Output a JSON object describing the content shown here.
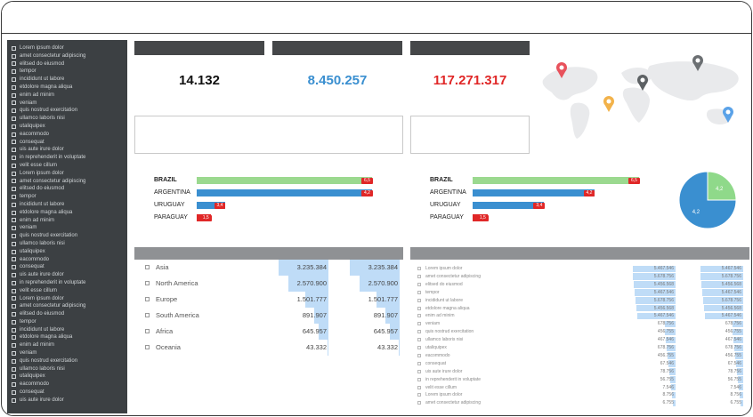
{
  "sidebar": {
    "items": [
      "Lorem ipsum dolor",
      "amet consectetur adipiscing",
      "elitsed do eiusmod",
      "tempor",
      "incididunt ut labore",
      "etdolore magna aliqua",
      "enim ad minim",
      "veniam",
      "quis nostrud exercitation",
      "ullamco laboris nisi",
      "utaliquipex",
      "eacommodo",
      "consequat",
      "uis aute irure dolor",
      "in reprehenderit in voluptate",
      "velit esse cillum",
      "Lorem ipsum dolor",
      "amet consectetur adipiscing",
      "elitsed do eiusmod",
      "tempor",
      "incididunt ut labore",
      "etdolore magna aliqua",
      "enim ad minim",
      "veniam",
      "quis nostrud exercitation",
      "ullamco laboris nisi",
      "utaliquipex",
      "eacommodo",
      "consequat",
      "uis aute irure dolor",
      "in reprehenderit in voluptate",
      "velit esse cillum",
      "Lorem ipsum dolor",
      "amet consectetur adipiscing",
      "elitsed do eiusmod",
      "tempor",
      "incididunt ut labore",
      "etdolore magna aliqua",
      "enim ad minim",
      "veniam",
      "quis nostrud exercitation",
      "ullamco laboris nisi",
      "utaliquipex",
      "eacommodo",
      "consequat",
      "uis aute irure dolor"
    ]
  },
  "kpis": [
    {
      "value": "14.132",
      "color": "#111111"
    },
    {
      "value": "8.450.257",
      "color": "#3a8fd0"
    },
    {
      "value": "117.271.317",
      "color": "#e02727"
    }
  ],
  "country_bars_left": [
    {
      "label": "BRAZIL",
      "bold": true,
      "value": "6,5",
      "color": "#9bd98f",
      "fraction": 1.0
    },
    {
      "label": "ARGENTINA",
      "bold": false,
      "value": "4,2",
      "color": "#3a8fd0",
      "fraction": 1.0
    },
    {
      "label": "URUGUAY",
      "bold": false,
      "value": "3,4",
      "color": "#3a8fd0",
      "fraction": 0.16
    },
    {
      "label": "PARAGUAY",
      "bold": false,
      "value": "1,5",
      "color": "#e02727",
      "fraction": 0.08
    }
  ],
  "country_bars_right": [
    {
      "label": "BRAZIL",
      "bold": true,
      "value": "6,5",
      "color": "#9bd98f",
      "fraction": 1.0
    },
    {
      "label": "ARGENTINA",
      "bold": false,
      "value": "4,2",
      "color": "#3a8fd0",
      "fraction": 0.73
    },
    {
      "label": "URUGUAY",
      "bold": false,
      "value": "3,4",
      "color": "#3a8fd0",
      "fraction": 0.43
    },
    {
      "label": "PARAGUAY",
      "bold": false,
      "value": "1,5",
      "color": "#e02727",
      "fraction": 0.09
    }
  ],
  "pie": {
    "slices": [
      {
        "label": "4,2",
        "value": 0.25,
        "color": "#8fd98a"
      },
      {
        "label": "4,2",
        "value": 0.75,
        "color": "#3a8fd0"
      }
    ]
  },
  "continent_table": {
    "rows": [
      {
        "label": "Asia",
        "v1": "3.235.384",
        "v2": "3.235.384",
        "fraction": 1.0
      },
      {
        "label": "North America",
        "v1": "2.570.900",
        "v2": "2.570.900",
        "fraction": 0.8
      },
      {
        "label": "Europe",
        "v1": "1.501.777",
        "v2": "1.501.777",
        "fraction": 0.47
      },
      {
        "label": "South America",
        "v1": "891.907",
        "v2": "891.907",
        "fraction": 0.28
      },
      {
        "label": "Africa",
        "v1": "645.957",
        "v2": "645.957",
        "fraction": 0.2
      },
      {
        "label": "Oceania",
        "v1": "43.332",
        "v2": "43.332",
        "fraction": 0.02
      }
    ]
  },
  "detail_table": {
    "rows": [
      {
        "label": "Lorem ipsum dolor",
        "v1": "5.467.546",
        "v2": "5.467.546",
        "fraction": 1.0
      },
      {
        "label": "amet consectetur adipiscing",
        "v1": "5.678.756",
        "v2": "5.678.756",
        "fraction": 1.0
      },
      {
        "label": "elitsed do eiusmod",
        "v1": "5.456.568",
        "v2": "5.456.568",
        "fraction": 0.98
      },
      {
        "label": "tempor",
        "v1": "5.467.546",
        "v2": "5.467.546",
        "fraction": 0.96
      },
      {
        "label": "incididunt ut labore",
        "v1": "5.678.756",
        "v2": "5.678.756",
        "fraction": 0.94
      },
      {
        "label": "etdolore magna aliqua",
        "v1": "5.456.568",
        "v2": "5.456.568",
        "fraction": 0.92
      },
      {
        "label": "enim ad minim",
        "v1": "5.467.546",
        "v2": "5.467.546",
        "fraction": 0.9
      },
      {
        "label": "veniam",
        "v1": "678.756",
        "v2": "678.756",
        "fraction": 0.26
      },
      {
        "label": "quis nostrud exercitation",
        "v1": "456.755",
        "v2": "456.755",
        "fraction": 0.24
      },
      {
        "label": "ullamco laboris nisi",
        "v1": "467.546",
        "v2": "467.546",
        "fraction": 0.22
      },
      {
        "label": "utaliquipex",
        "v1": "678.756",
        "v2": "678.756",
        "fraction": 0.2
      },
      {
        "label": "eacommodo",
        "v1": "456.755",
        "v2": "456.755",
        "fraction": 0.18
      },
      {
        "label": "consequat",
        "v1": "67.546",
        "v2": "67.546",
        "fraction": 0.16
      },
      {
        "label": "uis aute irure dolor",
        "v1": "78.756",
        "v2": "78.756",
        "fraction": 0.14
      },
      {
        "label": "in reprehenderit in voluptate",
        "v1": "56.755",
        "v2": "56.755",
        "fraction": 0.12
      },
      {
        "label": "velit esse cillum",
        "v1": "7.546",
        "v2": "7.546",
        "fraction": 0.1
      },
      {
        "label": "Lorem ipsum dolor",
        "v1": "8.756",
        "v2": "8.756",
        "fraction": 0.08
      },
      {
        "label": "amet consectetur adipiscing",
        "v1": "6.755",
        "v2": "6.755",
        "fraction": 0.06
      }
    ]
  },
  "map": {
    "pins": [
      {
        "name": "map-pin-red",
        "color": "#e8525c"
      },
      {
        "name": "map-pin-gray",
        "color": "#6b6f72"
      },
      {
        "name": "map-pin-dark",
        "color": "#5d6164"
      },
      {
        "name": "map-pin-orange",
        "color": "#f2b24a"
      },
      {
        "name": "map-pin-blue",
        "color": "#5aa2e8"
      }
    ]
  }
}
